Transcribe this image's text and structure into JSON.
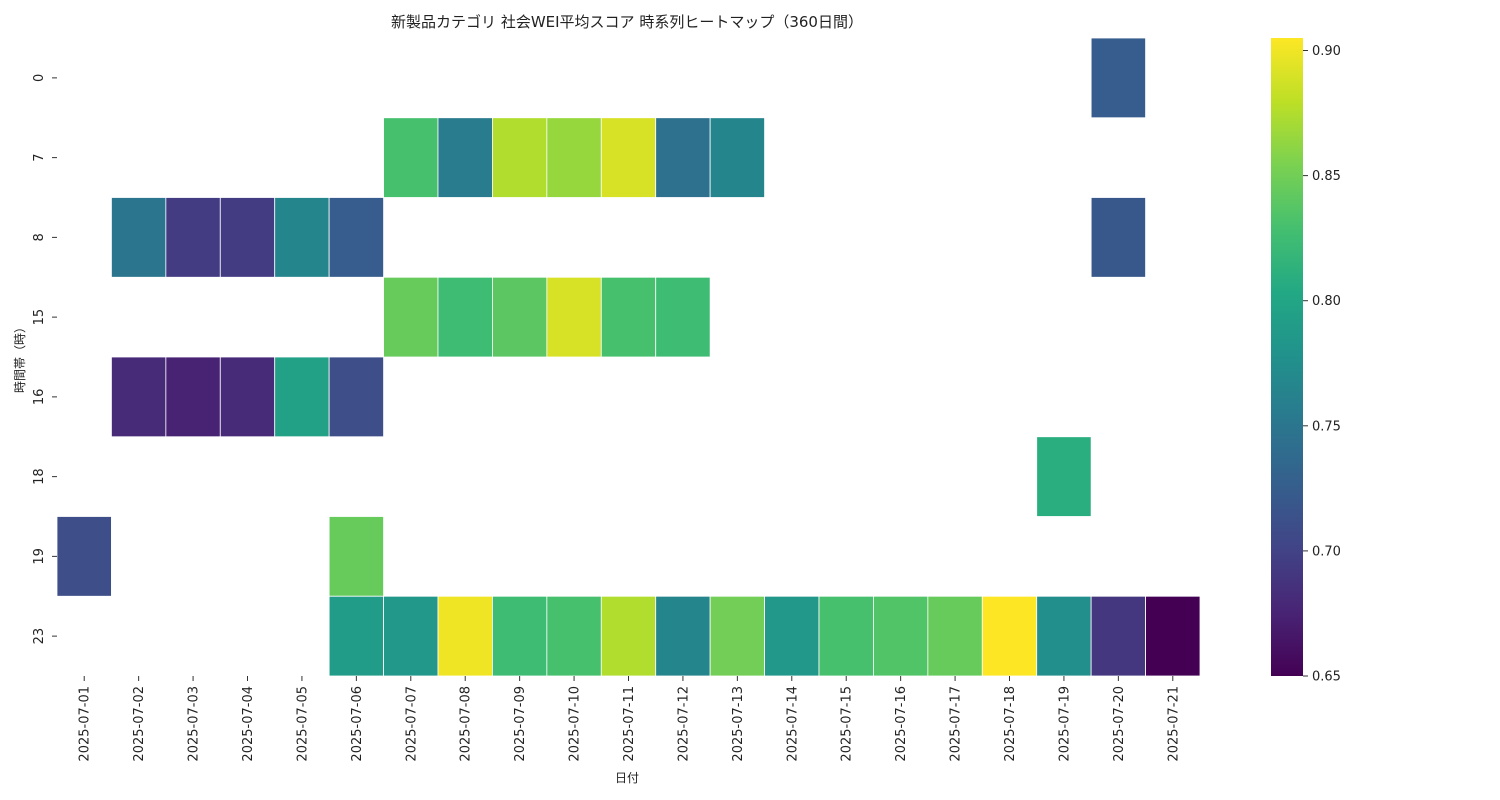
{
  "chart_data": {
    "type": "heatmap",
    "title": "新製品カテゴリ 社会WEI平均スコア 時系列ヒートマップ（360日間）",
    "xlabel": "日付",
    "ylabel": "時間帯（時）",
    "colormap": "viridis",
    "color_range": [
      0.65,
      0.905
    ],
    "colorbar_ticks": [
      "0.65",
      "0.70",
      "0.75",
      "0.80",
      "0.85",
      "0.90"
    ],
    "x_categories": [
      "2025-07-01",
      "2025-07-02",
      "2025-07-03",
      "2025-07-04",
      "2025-07-05",
      "2025-07-06",
      "2025-07-07",
      "2025-07-08",
      "2025-07-09",
      "2025-07-10",
      "2025-07-11",
      "2025-07-12",
      "2025-07-13",
      "2025-07-14",
      "2025-07-15",
      "2025-07-16",
      "2025-07-17",
      "2025-07-18",
      "2025-07-19",
      "2025-07-20",
      "2025-07-21"
    ],
    "y_categories": [
      "0",
      "7",
      "8",
      "15",
      "16",
      "18",
      "19",
      "23"
    ],
    "values": [
      [
        null,
        null,
        null,
        null,
        null,
        null,
        null,
        null,
        null,
        null,
        null,
        null,
        null,
        null,
        null,
        null,
        null,
        null,
        null,
        0.725,
        null
      ],
      [
        null,
        null,
        null,
        null,
        null,
        null,
        0.83,
        0.755,
        0.875,
        0.865,
        0.89,
        0.745,
        0.765,
        null,
        null,
        null,
        null,
        null,
        null,
        null,
        null
      ],
      [
        null,
        0.75,
        0.695,
        0.695,
        0.765,
        0.725,
        null,
        null,
        null,
        null,
        null,
        null,
        null,
        null,
        null,
        null,
        null,
        null,
        null,
        0.72,
        null
      ],
      [
        null,
        null,
        null,
        null,
        null,
        null,
        0.845,
        0.825,
        0.84,
        0.89,
        0.83,
        0.825,
        null,
        null,
        null,
        null,
        null,
        null,
        null,
        null,
        null
      ],
      [
        null,
        0.68,
        0.675,
        0.68,
        0.795,
        0.71,
        null,
        null,
        null,
        null,
        null,
        null,
        null,
        null,
        null,
        null,
        null,
        null,
        null,
        null,
        null
      ],
      [
        null,
        null,
        null,
        null,
        null,
        null,
        null,
        null,
        null,
        null,
        null,
        null,
        null,
        null,
        null,
        null,
        null,
        null,
        0.81,
        null,
        null
      ],
      [
        0.71,
        null,
        null,
        null,
        null,
        0.845,
        null,
        null,
        null,
        null,
        null,
        null,
        null,
        null,
        null,
        null,
        null,
        null,
        null,
        null,
        null
      ],
      [
        null,
        null,
        null,
        null,
        null,
        0.79,
        0.785,
        0.9,
        0.825,
        0.83,
        0.875,
        0.765,
        0.85,
        0.785,
        0.83,
        0.835,
        0.845,
        0.905,
        0.775,
        0.69,
        0.65
      ]
    ]
  }
}
